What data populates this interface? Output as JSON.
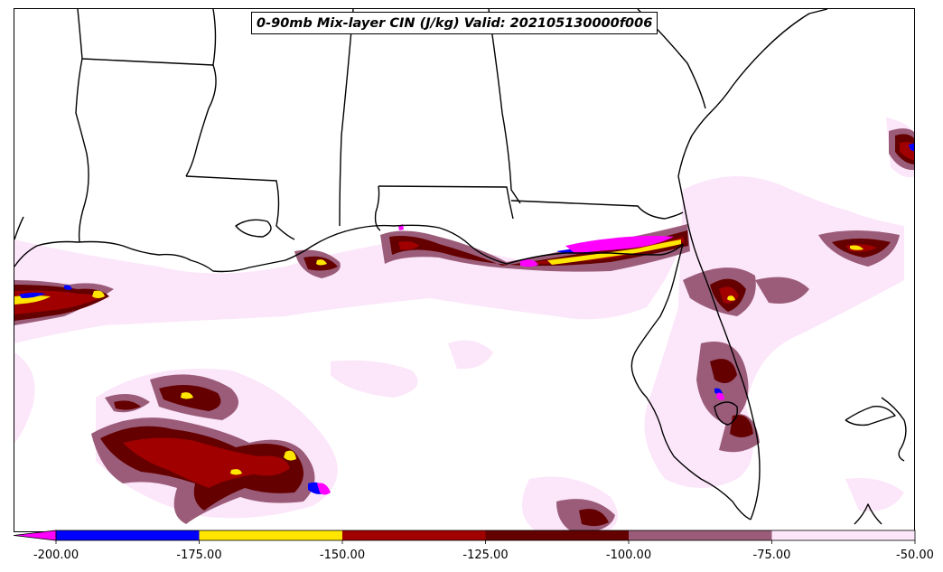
{
  "title": "0-90mb Mix-layer CIN (J/kg) Valid: 202105130000f006",
  "colorbar": {
    "extend": "min",
    "ticks": [
      "-200.00",
      "-175.00",
      "-150.00",
      "-125.00",
      "-100.00",
      "-75.00",
      "-50.00"
    ],
    "bins": [
      {
        "from": -200,
        "to": -175,
        "color": "#0000ff"
      },
      {
        "from": -175,
        "to": -150,
        "color": "#ffe600"
      },
      {
        "from": -150,
        "to": -125,
        "color": "#a00000"
      },
      {
        "from": -125,
        "to": -100,
        "color": "#640000"
      },
      {
        "from": -100,
        "to": -75,
        "color": "#9a5c78"
      },
      {
        "from": -75,
        "to": -50,
        "color": "#fce6fa"
      }
    ],
    "under_color": "#ff00ff"
  },
  "map": {
    "region": "US Gulf Coast and Gulf of Mexico",
    "boundaries": [
      "state-borders",
      "coastline"
    ]
  }
}
